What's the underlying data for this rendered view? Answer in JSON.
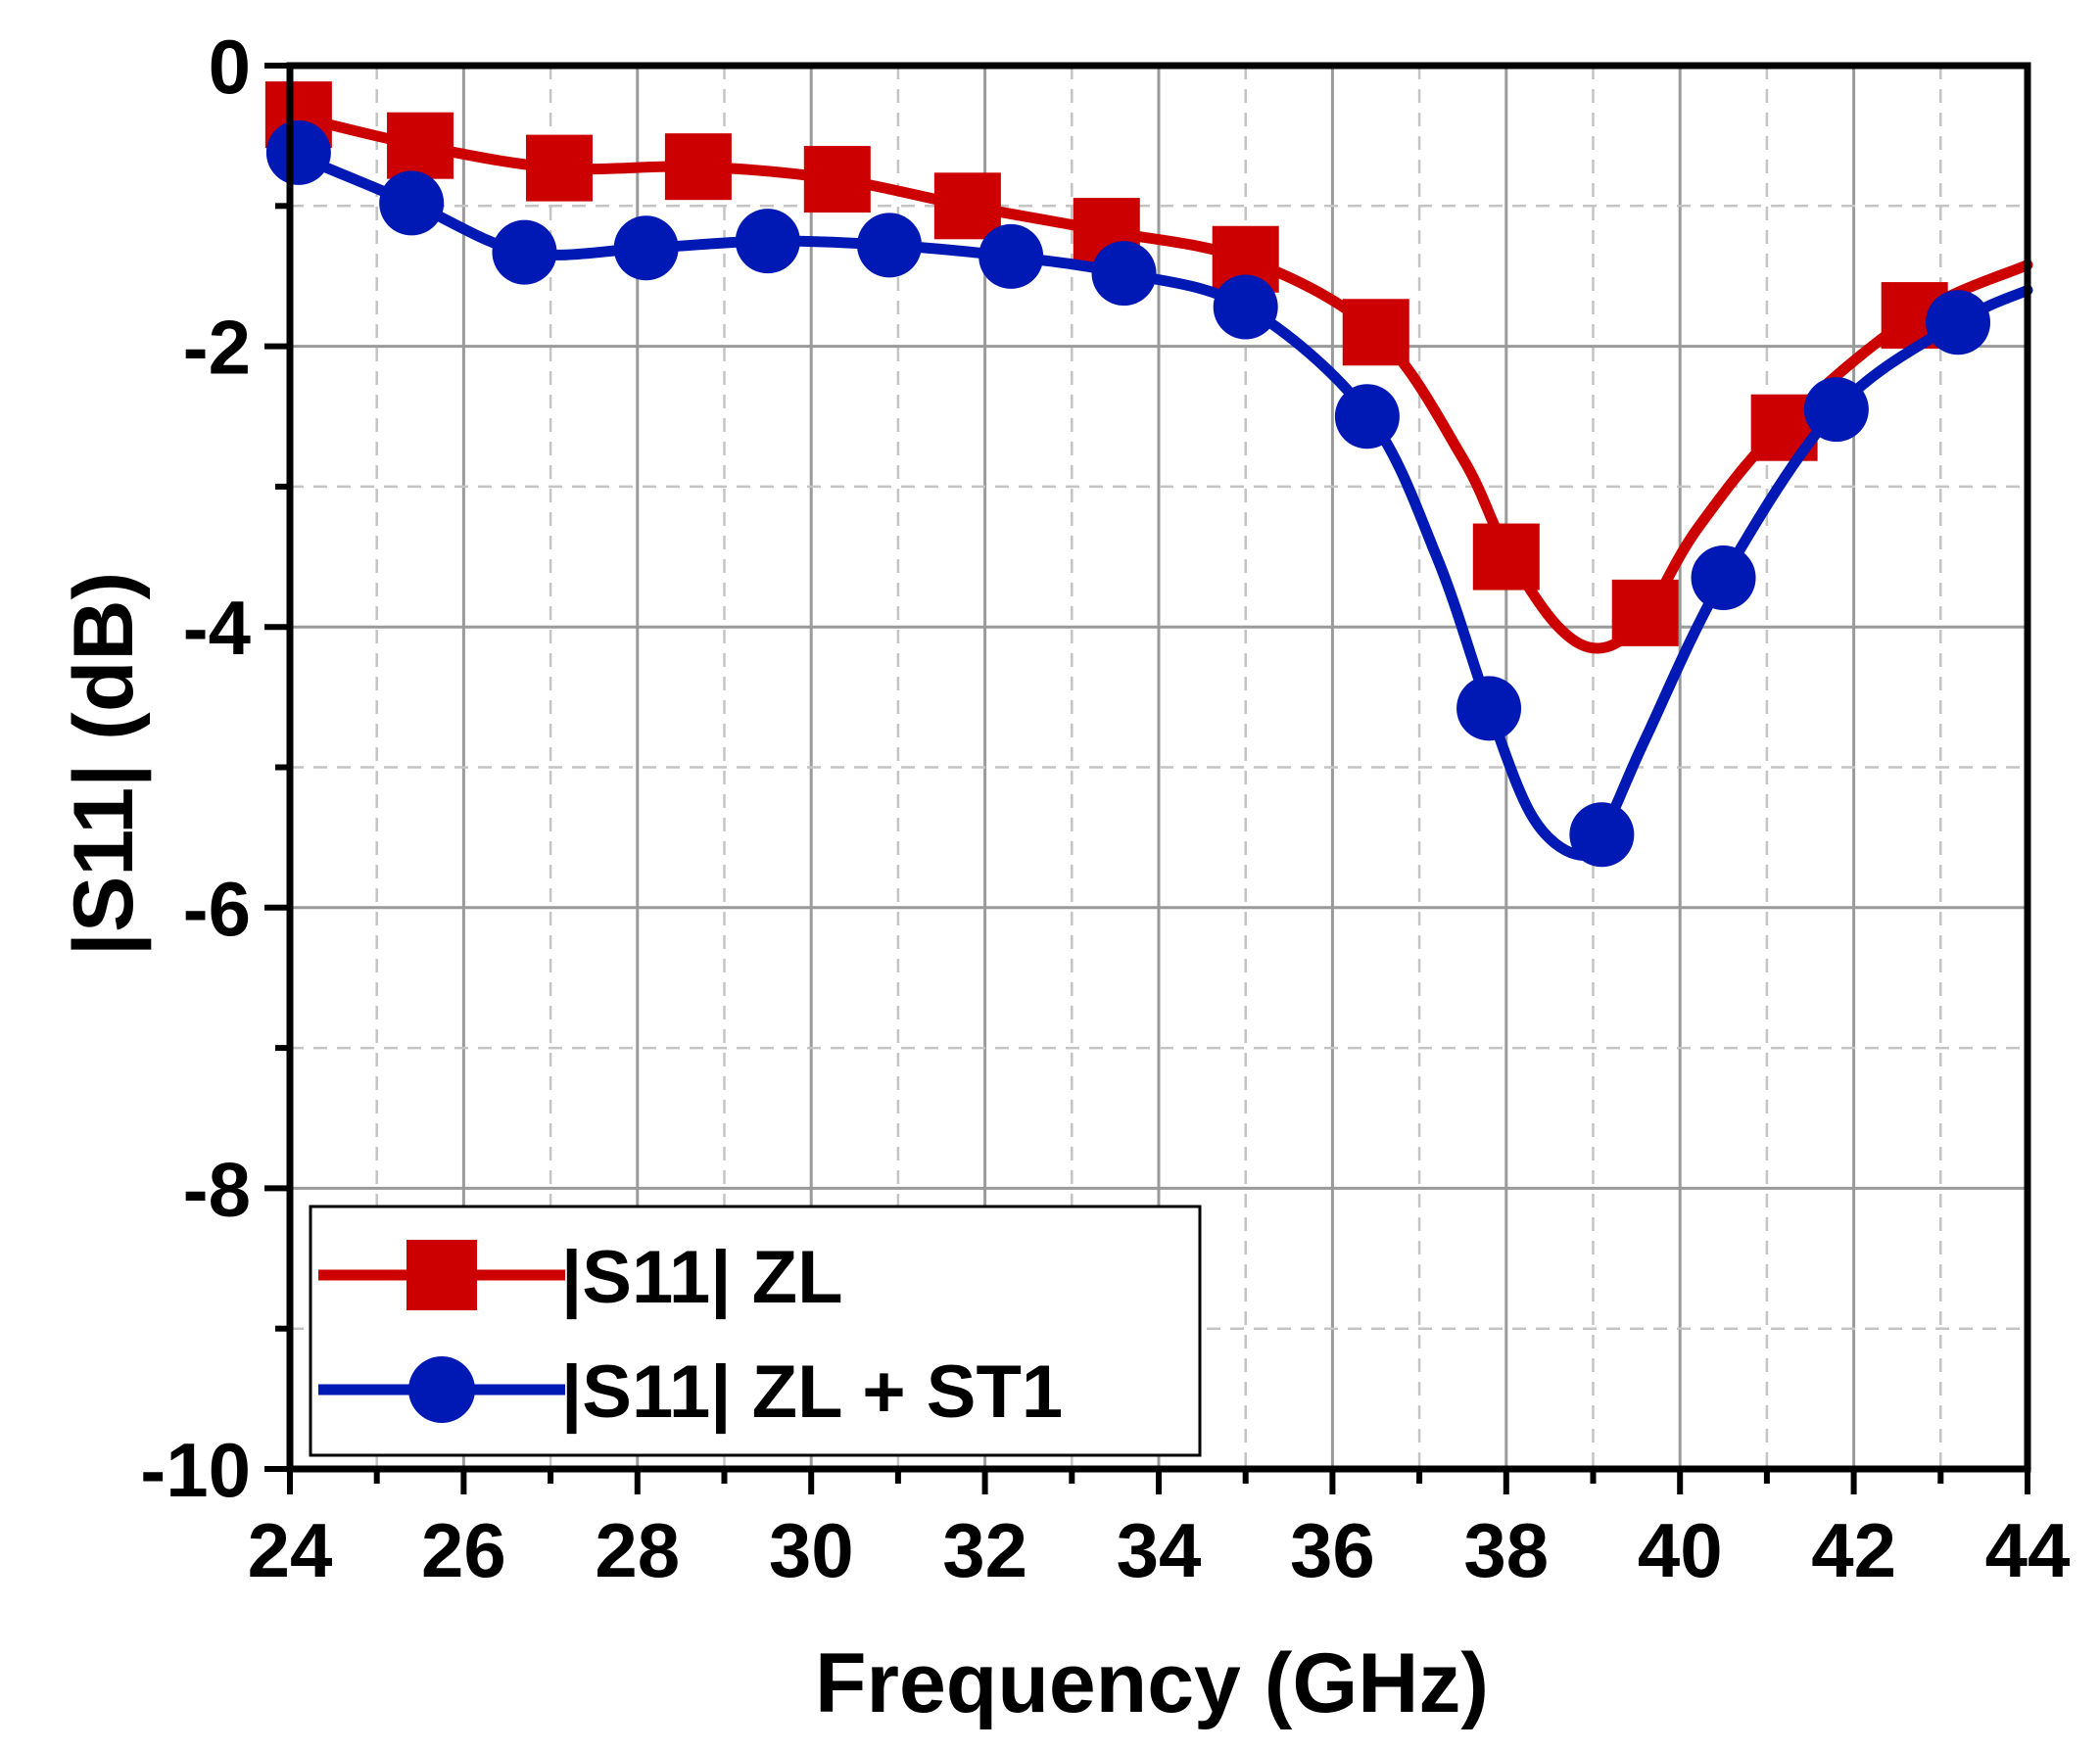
{
  "chart_data": {
    "type": "line",
    "title": "",
    "xlabel": "Frequency (GHz)",
    "ylabel": "|S11| (dB)",
    "xlim": [
      24,
      44
    ],
    "ylim": [
      -10,
      0
    ],
    "x_ticks": [
      24,
      26,
      28,
      30,
      32,
      34,
      36,
      38,
      40,
      42,
      44
    ],
    "x_tick_labels": [
      "24",
      "26",
      "28",
      "30",
      "32",
      "34",
      "36",
      "38",
      "40",
      "42",
      "44"
    ],
    "y_ticks": [
      0,
      -2,
      -4,
      -6,
      -8,
      -10
    ],
    "y_tick_labels": [
      "0",
      "-2",
      "-4",
      "-6",
      "-8",
      "-10"
    ],
    "grid": true,
    "legend_position": "bottom-left",
    "series": [
      {
        "name": "|S11| ZL",
        "color": "#cc0000",
        "marker": "square",
        "curve_x": [
          24,
          25.5,
          27.1,
          28.7,
          30.3,
          31.8,
          33.4,
          35.0,
          36.5,
          37.5,
          38.0,
          38.6,
          39.1,
          39.6,
          40.2,
          41.2,
          42.7,
          44
        ],
        "curve_y": [
          -0.35,
          -0.57,
          -0.73,
          -0.72,
          -0.81,
          -1.0,
          -1.18,
          -1.38,
          -1.9,
          -2.8,
          -3.45,
          -4.0,
          -4.15,
          -3.92,
          -3.3,
          -2.55,
          -1.78,
          -1.42
        ],
        "marker_x": [
          24.1,
          25.5,
          27.1,
          28.7,
          30.3,
          31.8,
          33.4,
          35.0,
          36.5,
          38.0,
          39.6,
          41.2,
          42.7
        ],
        "marker_y": [
          -0.35,
          -0.57,
          -0.73,
          -0.72,
          -0.81,
          -1.0,
          -1.18,
          -1.38,
          -1.9,
          -3.5,
          -3.9,
          -2.58,
          -1.78
        ]
      },
      {
        "name": "|S11| ZL + ST1",
        "color": "#0018b4",
        "marker": "circle",
        "curve_x": [
          24,
          25.4,
          26.7,
          28.1,
          29.5,
          30.9,
          32.3,
          33.6,
          35.0,
          36.4,
          37.2,
          37.8,
          38.3,
          38.8,
          39.1,
          39.6,
          40.5,
          41.8,
          43.2,
          44
        ],
        "curve_y": [
          -0.62,
          -0.98,
          -1.33,
          -1.3,
          -1.25,
          -1.28,
          -1.36,
          -1.48,
          -1.72,
          -2.48,
          -3.5,
          -4.58,
          -5.35,
          -5.62,
          -5.48,
          -4.8,
          -3.65,
          -2.45,
          -1.83,
          -1.6
        ],
        "marker_x": [
          24.1,
          25.4,
          26.7,
          28.1,
          29.5,
          30.9,
          32.3,
          33.6,
          35.0,
          36.4,
          37.8,
          39.1,
          40.5,
          41.8,
          43.2
        ],
        "marker_y": [
          -0.62,
          -0.98,
          -1.33,
          -1.3,
          -1.25,
          -1.28,
          -1.36,
          -1.48,
          -1.72,
          -2.5,
          -4.58,
          -5.48,
          -3.65,
          -2.45,
          -1.83
        ]
      }
    ]
  }
}
